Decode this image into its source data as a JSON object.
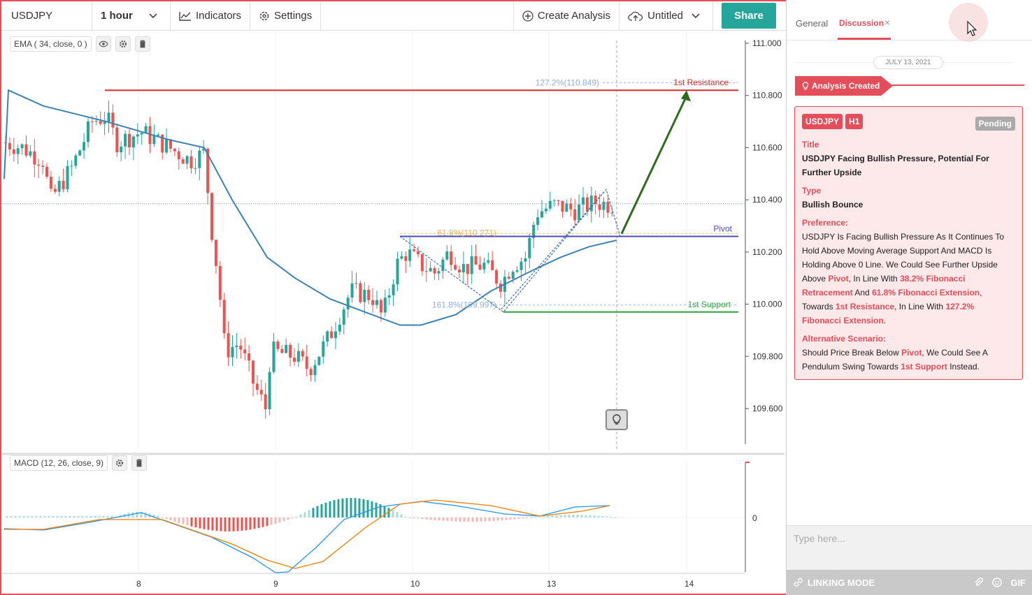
{
  "toolbar": {
    "symbol": "USDJPY",
    "interval": "1 hour",
    "indicators": "Indicators",
    "settings": "Settings",
    "create_analysis": "Create Analysis",
    "layout_name": "Untitled",
    "share": "Share"
  },
  "legends": {
    "ema": "EMA ( 34, close, 0 )",
    "macd": "MACD (12, 26, close, 9)"
  },
  "price_axis": [
    "111.000",
    "110.800",
    "110.600",
    "110.400",
    "110.200",
    "110.000",
    "109.800",
    "109.600"
  ],
  "macd_axis": [
    "0"
  ],
  "time_axis": [
    "8",
    "9",
    "10",
    "13",
    "14"
  ],
  "annotations": {
    "resistance": "1st Resistance",
    "pivot": "Pivot",
    "support": "1st Support",
    "fib_127": "127.2%(110.849)",
    "fib_618": "61.8%(110.271)",
    "fib_1618": "161.8%(109.997)"
  },
  "colors": {
    "bull": "#26a69a",
    "bear": "#ef5350",
    "ema": "#3b82b5",
    "resistance": "#d32f2f",
    "pivot": "#4a4ac8",
    "support": "#2da33c",
    "arrow": "#2e6b1f",
    "macd": "#2196f3",
    "signal": "#f57c00"
  },
  "chart_data": {
    "type": "candlestick",
    "symbol": "USDJPY",
    "interval": "1 hour",
    "x_ticks": [
      "8",
      "9",
      "10",
      "13",
      "14"
    ],
    "ylim": [
      109.5,
      111.0
    ],
    "levels": [
      {
        "name": "1st Resistance",
        "value": 110.82
      },
      {
        "name": "Pivot",
        "value": 110.26
      },
      {
        "name": "1st Support",
        "value": 109.97
      }
    ],
    "fibonacci": [
      {
        "label": "127.2%",
        "value": 110.849
      },
      {
        "label": "61.8%",
        "value": 110.271
      },
      {
        "label": "161.8%",
        "value": 109.997
      }
    ]
  },
  "panel": {
    "tab_general": "General",
    "tab_discussion": "Discussion",
    "tab_close": "×",
    "date": "JULY 13, 2021",
    "created": "Analysis Created",
    "badge_symbol": "USDJPY",
    "badge_tf": "H1",
    "status": "Pending",
    "title_h": "Title",
    "title_v": "USDJPY Facing Bullish Pressure, Potential For Further Upside",
    "type_h": "Type",
    "type_v": "Bullish Bounce",
    "pref_h": "Preference:",
    "pref_1": "USDJPY Is Facing Bullish Pressure As It Continues To Hold Above Moving Average Support And MACD Is Holding Above 0 Line. We Could See Further Upside Above ",
    "pref_pivot": "Pivot",
    "pref_2": ", In Line With ",
    "pref_382": "38.2% Fibonacci Retracement",
    "pref_3": " And ",
    "pref_618": "61.8% Fibonacci Extension",
    "pref_4": ", Towards ",
    "pref_res": "1st Resistance",
    "pref_5": ", In Line With ",
    "pref_127": "127.2% Fibonacci Extension",
    "pref_6": ".",
    "alt_h": "Alternative Scenario:",
    "alt_1": "Should Price Break Below ",
    "alt_pivot": "Pivot",
    "alt_2": ", We Could See A Pendulum Swing Towards ",
    "alt_sup": "1st Support",
    "alt_3": " Instead.",
    "placeholder": "Type here...",
    "linking": "LINKING MODE",
    "gif": "GIF"
  }
}
